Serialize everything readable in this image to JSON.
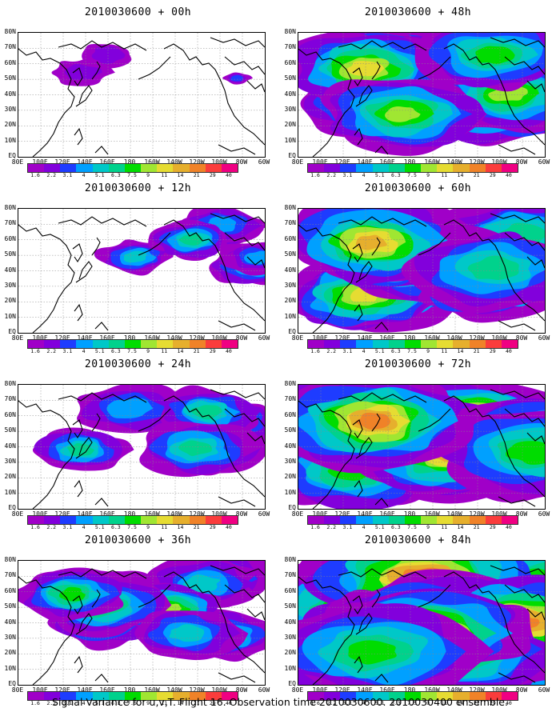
{
  "panels": [
    {
      "title": "2010030600 + 00h",
      "col": 0,
      "row": 0,
      "level": 0.0
    },
    {
      "title": "2010030600 + 48h",
      "col": 1,
      "row": 0,
      "level": 3.0
    },
    {
      "title": "2010030600 + 12h",
      "col": 0,
      "row": 1,
      "level": 1.0
    },
    {
      "title": "2010030600 + 60h",
      "col": 1,
      "row": 1,
      "level": 3.5
    },
    {
      "title": "2010030600 + 24h",
      "col": 0,
      "row": 2,
      "level": 1.8
    },
    {
      "title": "2010030600 + 72h",
      "col": 1,
      "row": 2,
      "level": 4.2
    },
    {
      "title": "2010030600 + 36h",
      "col": 0,
      "row": 3,
      "level": 2.4
    },
    {
      "title": "2010030600 + 84h",
      "col": 1,
      "row": 3,
      "level": 5.0
    }
  ],
  "axes": {
    "lat_labels": [
      "80N",
      "70N",
      "60N",
      "50N",
      "40N",
      "30N",
      "20N",
      "10N",
      "EQ"
    ],
    "lon_labels": [
      "80E",
      "100E",
      "120E",
      "140E",
      "160E",
      "180",
      "160W",
      "140W",
      "120W",
      "100W",
      "80W",
      "60W"
    ]
  },
  "colorbar": {
    "labels": [
      "1.6",
      "2.2",
      "3.1",
      "4",
      "5.1",
      "6.3",
      "7.5",
      "9",
      "11",
      "14",
      "21",
      "29",
      "40"
    ],
    "colors": [
      "#a000c8",
      "#8200dc",
      "#1e3cff",
      "#00a0ff",
      "#00c8c8",
      "#00d28c",
      "#00dc00",
      "#a0e632",
      "#e6dc32",
      "#e6af2d",
      "#f08228",
      "#fa3c3c",
      "#f00082"
    ]
  },
  "footer": "Signal Variance for u,v,T. Flight 16. Observation time 2010030600. 2010030400 ensemble."
}
